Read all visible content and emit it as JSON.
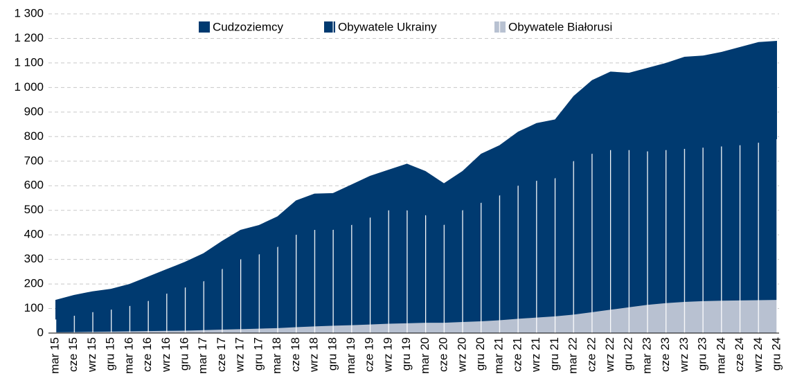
{
  "chart_data": {
    "type": "area",
    "categories": [
      "mar 15",
      "cze 15",
      "wrz 15",
      "gru 15",
      "mar 16",
      "cze 16",
      "wrz 16",
      "gru 16",
      "mar 17",
      "cze 17",
      "wrz 17",
      "gru 17",
      "mar 18",
      "cze 18",
      "wrz 18",
      "gru 18",
      "mar 19",
      "cze 19",
      "wrz 19",
      "gru 19",
      "mar 20",
      "cze 20",
      "wrz 20",
      "gru 20",
      "mar 21",
      "cze 21",
      "wrz 21",
      "gru 21",
      "mar 22",
      "cze 22",
      "wrz 22",
      "gru 22",
      "mar 23",
      "cze 23",
      "wrz 23",
      "gru 23",
      "mar 24",
      "cze 24",
      "wrz 24",
      "gru 24"
    ],
    "series": [
      {
        "name": "Cudzoziemcy",
        "color": "#003a70",
        "values": [
          135,
          155,
          170,
          180,
          200,
          230,
          260,
          290,
          325,
          375,
          420,
          440,
          475,
          540,
          568,
          570,
          605,
          640,
          665,
          690,
          660,
          610,
          660,
          730,
          765,
          820,
          855,
          870,
          965,
          1030,
          1065,
          1060,
          1080,
          1100,
          1125,
          1130,
          1145,
          1165,
          1185,
          1190
        ]
      },
      {
        "name": "Obywatele Ukrainy",
        "color": "#003a70",
        "values": [
          55,
          70,
          85,
          95,
          110,
          130,
          160,
          185,
          210,
          260,
          300,
          320,
          350,
          400,
          420,
          420,
          440,
          470,
          500,
          500,
          480,
          440,
          500,
          530,
          560,
          600,
          620,
          630,
          700,
          730,
          745,
          745,
          740,
          745,
          750,
          755,
          760,
          765,
          775,
          790
        ]
      },
      {
        "name": "Obywatele Białorusi",
        "color": "#b8c1d1",
        "values": [
          3,
          4,
          5,
          6,
          7,
          8,
          9,
          10,
          12,
          14,
          16,
          18,
          20,
          24,
          27,
          30,
          32,
          35,
          38,
          40,
          42,
          42,
          45,
          48,
          52,
          58,
          63,
          68,
          75,
          85,
          95,
          105,
          115,
          122,
          127,
          130,
          132,
          133,
          134,
          135
        ]
      }
    ],
    "ylim": [
      0,
      1300
    ],
    "yticks": [
      0,
      100,
      200,
      300,
      400,
      500,
      600,
      700,
      800,
      900,
      {
        "value": 1000,
        "label": "1 000"
      },
      {
        "value": 1100,
        "label": "1 100"
      },
      {
        "value": 1200,
        "label": "1 200"
      },
      {
        "value": 1300,
        "label": "1 300"
      }
    ],
    "grid": true,
    "legend": "top"
  }
}
